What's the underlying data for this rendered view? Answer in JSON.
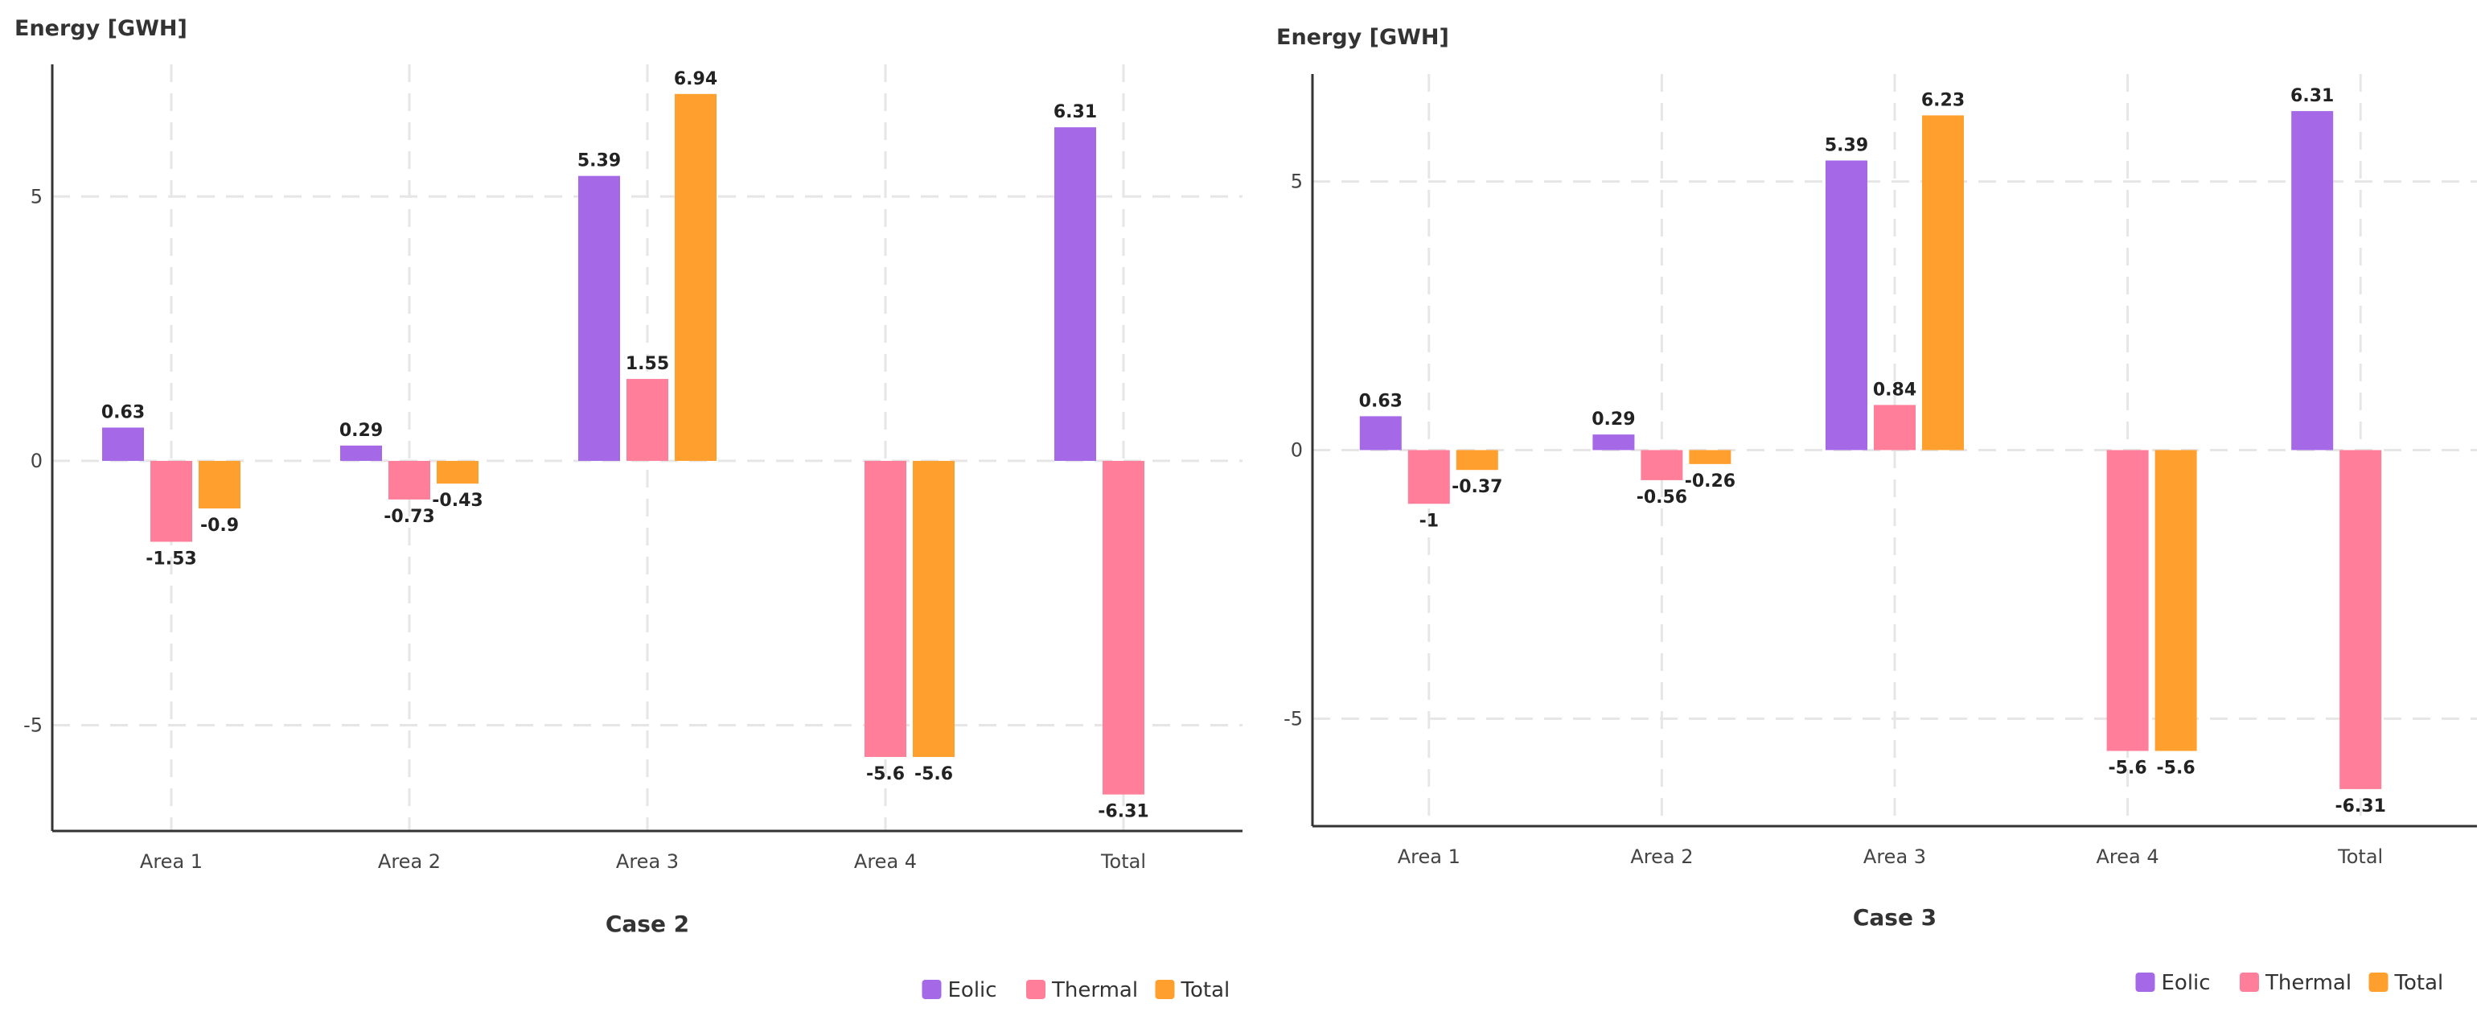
{
  "chart_data": [
    {
      "type": "bar",
      "xlabel": "Case 2",
      "ylabel": "Energy [GWH]",
      "categories": [
        "Area 1",
        "Area 2",
        "Area 3",
        "Area 4",
        "Total"
      ],
      "series": [
        {
          "name": "Eolic",
          "color": "#a569e8",
          "values": [
            0.63,
            0.29,
            5.39,
            null,
            6.31
          ]
        },
        {
          "name": "Thermal",
          "color": "#ff7f9a",
          "values": [
            -1.53,
            -0.73,
            1.55,
            -5.6,
            -6.31
          ]
        },
        {
          "name": "Total",
          "color": "#ff9f2e",
          "values": [
            -0.9,
            -0.43,
            6.94,
            -5.6,
            null
          ]
        }
      ],
      "ylim": [
        -7.0,
        7.5
      ],
      "yticks": [
        -5,
        0,
        5
      ],
      "ytick_labels": [
        "-5",
        "0",
        "5"
      ]
    },
    {
      "type": "bar",
      "xlabel": "Case 3",
      "ylabel": "Energy [GWH]",
      "categories": [
        "Area 1",
        "Area 2",
        "Area 3",
        "Area 4",
        "Total"
      ],
      "series": [
        {
          "name": "Eolic",
          "color": "#a569e8",
          "values": [
            0.63,
            0.29,
            5.39,
            null,
            6.31
          ]
        },
        {
          "name": "Thermal",
          "color": "#ff7f9a",
          "values": [
            -1,
            -0.56,
            0.84,
            -5.6,
            -6.31
          ]
        },
        {
          "name": "Total",
          "color": "#ff9f2e",
          "values": [
            -0.37,
            -0.26,
            6.23,
            -5.6,
            null
          ]
        }
      ],
      "ylim": [
        -7.0,
        7.0
      ],
      "yticks": [
        -5,
        0,
        5
      ],
      "ytick_labels": [
        "-5",
        "0",
        "5"
      ]
    }
  ],
  "legend": {
    "items": [
      {
        "label": "Eolic",
        "color": "#a569e8"
      },
      {
        "label": "Thermal",
        "color": "#ff7f9a"
      },
      {
        "label": "Total",
        "color": "#ff9f2e"
      }
    ]
  }
}
